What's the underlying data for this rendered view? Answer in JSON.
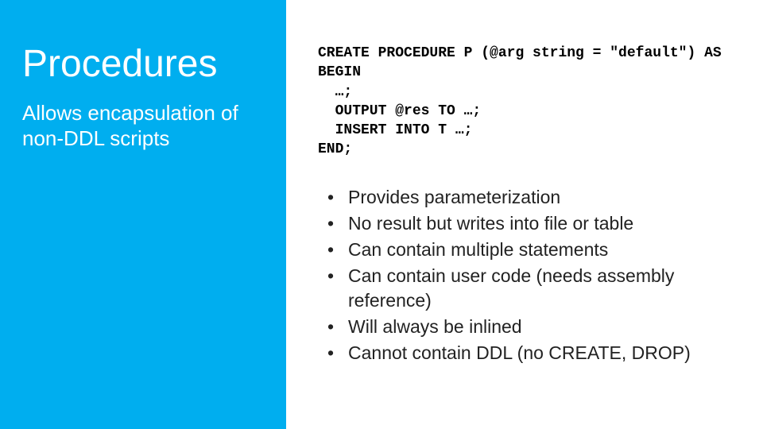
{
  "colors": {
    "sidebar_bg": "#00aeef",
    "sidebar_text": "#ffffff",
    "main_bg": "#ffffff",
    "main_text": "#222222",
    "code_text": "#000000"
  },
  "typography": {
    "title_fontsize": 48,
    "title_weight": 300,
    "subtitle_fontsize": 26,
    "subtitle_weight": 400,
    "code_fontsize": 18,
    "code_family": "Consolas",
    "bullet_fontsize": 23
  },
  "sidebar": {
    "title": "Procedures",
    "subtitle": "Allows encapsulation of non-DDL scripts"
  },
  "code": {
    "line1": "CREATE PROCEDURE P (@arg string = \"default\") AS",
    "line2": "BEGIN",
    "line3": "  …;",
    "line4": "  OUTPUT @res TO …;",
    "line5": "  INSERT INTO T …;",
    "line6": "END;"
  },
  "bullets": {
    "b1": "Provides parameterization",
    "b2": "No result but writes into file or table",
    "b3": "Can contain multiple statements",
    "b4": "Can contain user code (needs assembly reference)",
    "b5": "Will always be inlined",
    "b6": "Cannot contain DDL (no CREATE, DROP)"
  }
}
